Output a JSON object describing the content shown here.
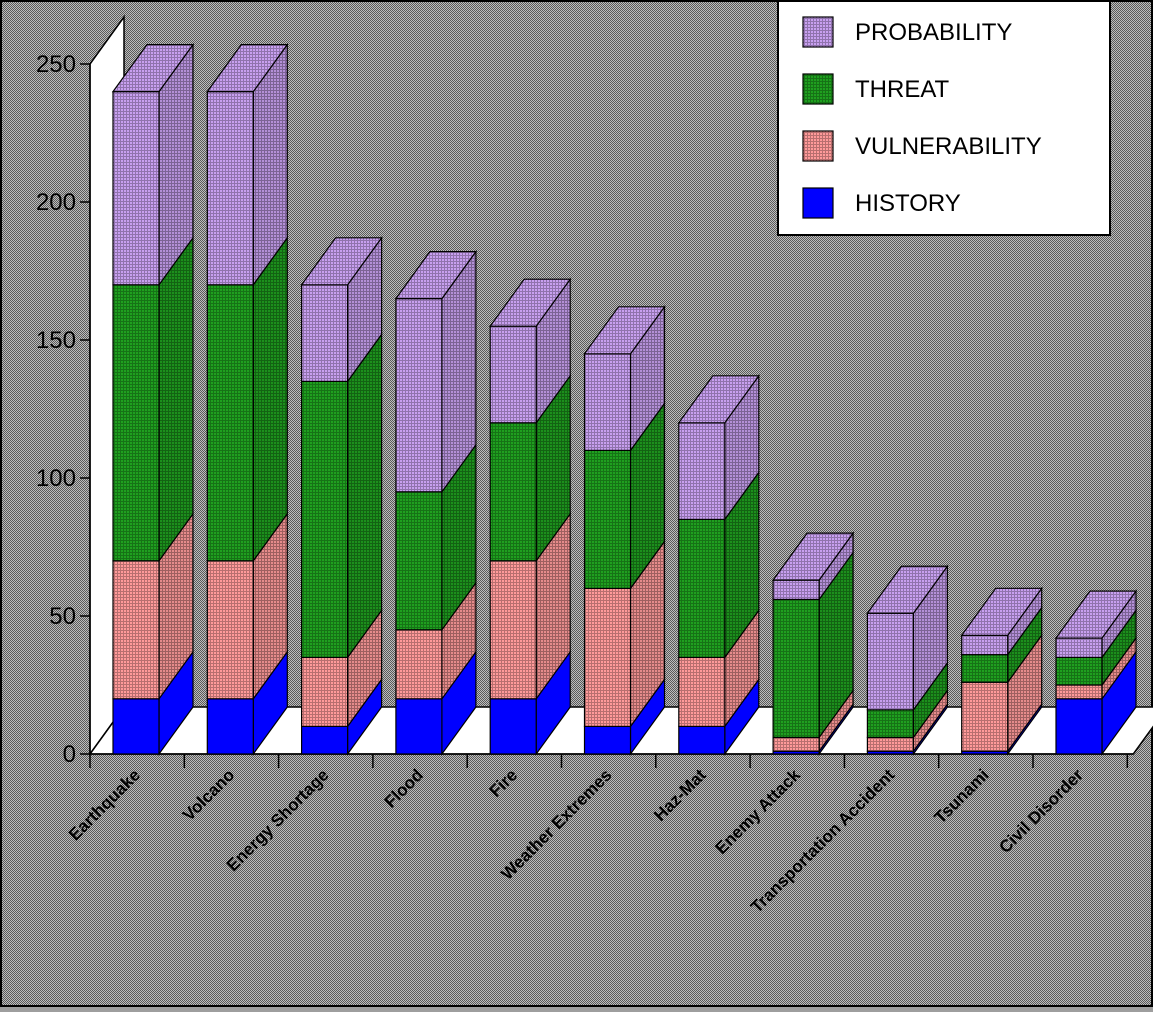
{
  "chart_data": {
    "type": "bar",
    "stacked": true,
    "style": "3d",
    "title": "",
    "xlabel": "",
    "ylabel": "",
    "ylim": [
      0,
      250
    ],
    "yticks": [
      0,
      50,
      100,
      150,
      200,
      250
    ],
    "grid": false,
    "legend_position": "top-right",
    "categories": [
      "Earthquake",
      "Volcano",
      "Energy Shortage",
      "Flood",
      "Fire",
      "Weather Extremes",
      "Haz-Mat",
      "Enemy Attack",
      "Transportation Accident",
      "Tsunami",
      "Civil Disorder"
    ],
    "series": [
      {
        "name": "HISTORY",
        "color": "#0000ff",
        "pattern": "solid",
        "values": [
          20,
          20,
          10,
          20,
          20,
          10,
          10,
          1,
          1,
          1,
          20
        ]
      },
      {
        "name": "VULNERABILITY",
        "color": "#ff9a9a",
        "pattern": "grid",
        "values": [
          50,
          50,
          25,
          25,
          50,
          50,
          25,
          5,
          5,
          25,
          5
        ]
      },
      {
        "name": "THREAT",
        "color": "#1fa01f",
        "pattern": "grid",
        "values": [
          100,
          100,
          100,
          50,
          50,
          50,
          50,
          50,
          10,
          10,
          10
        ]
      },
      {
        "name": "PROBABILITY",
        "color": "#c8a0f0",
        "pattern": "grid",
        "values": [
          70,
          70,
          35,
          70,
          35,
          35,
          35,
          7,
          35,
          7,
          7
        ]
      }
    ]
  }
}
